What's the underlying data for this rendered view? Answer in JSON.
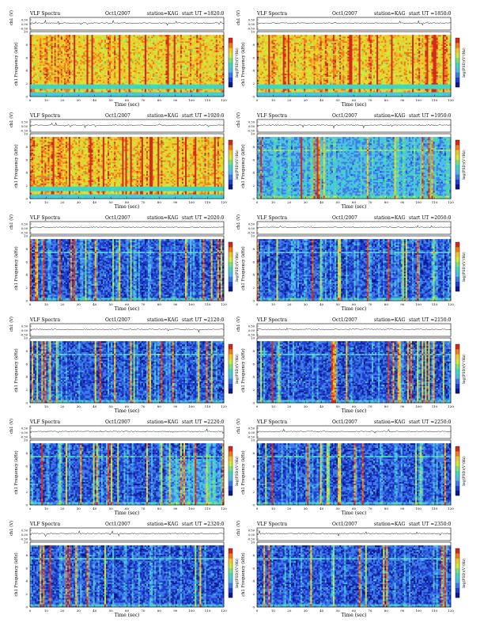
{
  "page": {
    "title": "VLF Spectra station KAG multi-panel spectrograms"
  },
  "colors": {
    "colormap": [
      "#0a1a8c",
      "#1f3fd0",
      "#3d7ce8",
      "#4fbde8",
      "#3fd6c2",
      "#7ee07a",
      "#cfe83a",
      "#f2c52a",
      "#f07c1c",
      "#d42a1a"
    ],
    "trace": "#000000",
    "axis": "#000000"
  },
  "chart_data": [
    {
      "type": "heatmap",
      "header_left": "VLF Spectra",
      "header_date": "Oct1/2007",
      "header_station": "station=KAG",
      "header_start": "start UT =1820:0",
      "ylabel_trace": "ch1 (V)",
      "ylabel_spec": "ch1 Frequency (kHz)",
      "xlabel": "Time (sec)",
      "cbar_label": "log(PSD)(V²/Hz)",
      "trace_ticks": [
        "0.50",
        "0.00",
        "-0.50"
      ],
      "x_ticks": [
        "0",
        "10",
        "20",
        "30",
        "40",
        "50",
        "60",
        "70",
        "80",
        "90",
        "100",
        "110",
        "120"
      ],
      "y_ticks": [
        "0",
        "2",
        "4",
        "6",
        "8",
        "10"
      ],
      "xlim": [
        0,
        120
      ],
      "ylim": [
        0,
        10
      ],
      "intensity": "high",
      "band_top_khz": 9.5
    },
    {
      "type": "heatmap",
      "header_left": "VLF Spectra",
      "header_date": "Oct1/2007",
      "header_station": "station=KAG",
      "header_start": "start UT =1850:0",
      "ylabel_trace": "ch1 (V)",
      "ylabel_spec": "ch1 Frequency (kHz)",
      "xlabel": "Time (sec)",
      "cbar_label": "log(PSD)(V²/Hz)",
      "trace_ticks": [
        "0.50",
        "0.00",
        "-0.50"
      ],
      "x_ticks": [
        "0",
        "10",
        "20",
        "30",
        "40",
        "50",
        "60",
        "70",
        "80",
        "90",
        "100",
        "110",
        "120"
      ],
      "y_ticks": [
        "0",
        "2",
        "4",
        "6",
        "8",
        "10"
      ],
      "xlim": [
        0,
        120
      ],
      "ylim": [
        0,
        10
      ],
      "intensity": "high",
      "band_top_khz": 9.5
    },
    {
      "type": "heatmap",
      "header_left": "VLF Spectra",
      "header_date": "Oct1/2007",
      "header_station": "station=KAG",
      "header_start": "start UT =1920:0",
      "ylabel_trace": "ch1 (V)",
      "ylabel_spec": "ch1 Frequency (kHz)",
      "xlabel": "Time (sec)",
      "cbar_label": "log(PSD)(V²/Hz)",
      "trace_ticks": [
        "0.50",
        "0.00",
        "-0.50"
      ],
      "x_ticks": [
        "0",
        "10",
        "20",
        "30",
        "40",
        "50",
        "60",
        "70",
        "80",
        "90",
        "100",
        "110",
        "120"
      ],
      "y_ticks": [
        "0",
        "2",
        "4",
        "6",
        "8",
        "10"
      ],
      "xlim": [
        0,
        120
      ],
      "ylim": [
        0,
        10
      ],
      "intensity": "high",
      "band_top_khz": 9.5
    },
    {
      "type": "heatmap",
      "header_left": "VLF Spectra",
      "header_date": "Oct1/2007",
      "header_station": "station=KAG",
      "header_start": "start UT =1950:0",
      "ylabel_trace": "ch1 (V)",
      "ylabel_spec": "ch1 Frequency (kHz)",
      "xlabel": "Time (sec)",
      "cbar_label": "log(PSD)(V²/Hz)",
      "trace_ticks": [
        "0.50",
        "0.00",
        "-0.50"
      ],
      "x_ticks": [
        "0",
        "10",
        "20",
        "30",
        "40",
        "50",
        "60",
        "70",
        "80",
        "90",
        "100",
        "110",
        "120"
      ],
      "y_ticks": [
        "0",
        "2",
        "4",
        "6",
        "8",
        "10"
      ],
      "xlim": [
        0,
        120
      ],
      "ylim": [
        0,
        10
      ],
      "intensity": "medium",
      "band_top_khz": 9.5
    },
    {
      "type": "heatmap",
      "header_left": "VLF Spectra",
      "header_date": "Oct1/2007",
      "header_station": "station=KAG",
      "header_start": "start UT =2020:0",
      "ylabel_trace": "ch1 (V)",
      "ylabel_spec": "ch1 Frequency (kHz)",
      "xlabel": "Time (sec)",
      "cbar_label": "log(PSD)(V²/Hz)",
      "trace_ticks": [
        "0.50",
        "0.00",
        "-0.50"
      ],
      "x_ticks": [
        "0",
        "10",
        "20",
        "30",
        "40",
        "50",
        "60",
        "70",
        "80",
        "90",
        "100",
        "110",
        "120"
      ],
      "y_ticks": [
        "0",
        "2",
        "4",
        "6",
        "8",
        "10"
      ],
      "xlim": [
        0,
        120
      ],
      "ylim": [
        0,
        10
      ],
      "intensity": "low",
      "band_top_khz": 9.5
    },
    {
      "type": "heatmap",
      "header_left": "VLF Spectra",
      "header_date": "Oct1/2007",
      "header_station": "station=KAG",
      "header_start": "start UT =2050:0",
      "ylabel_trace": "ch1 (V)",
      "ylabel_spec": "ch1 Frequency (kHz)",
      "xlabel": "Time (sec)",
      "cbar_label": "log(PSD)(V²/Hz)",
      "trace_ticks": [
        "0.50",
        "0.00",
        "-0.50"
      ],
      "x_ticks": [
        "0",
        "10",
        "20",
        "30",
        "40",
        "50",
        "60",
        "70",
        "80",
        "90",
        "100",
        "110",
        "120"
      ],
      "y_ticks": [
        "0",
        "2",
        "4",
        "6",
        "8",
        "10"
      ],
      "xlim": [
        0,
        120
      ],
      "ylim": [
        0,
        10
      ],
      "intensity": "low",
      "band_top_khz": 9.5
    },
    {
      "type": "heatmap",
      "header_left": "VLF Spectra",
      "header_date": "Oct1/2007",
      "header_station": "station=KAG",
      "header_start": "start UT =2120:0",
      "ylabel_trace": "ch1 (V)",
      "ylabel_spec": "ch1 Frequency (kHz)",
      "xlabel": "Time (sec)",
      "cbar_label": "log(PSD)(V²/Hz)",
      "trace_ticks": [
        "0.50",
        "0.00",
        "-0.50"
      ],
      "x_ticks": [
        "0",
        "10",
        "20",
        "30",
        "40",
        "50",
        "60",
        "70",
        "80",
        "90",
        "100",
        "110",
        "120"
      ],
      "y_ticks": [
        "0",
        "2",
        "4",
        "6",
        "8",
        "10"
      ],
      "xlim": [
        0,
        120
      ],
      "ylim": [
        0,
        10
      ],
      "intensity": "low",
      "band_top_khz": 9.5
    },
    {
      "type": "heatmap",
      "header_left": "VLF Spectra",
      "header_date": "Oct1/2007",
      "header_station": "station=KAG",
      "header_start": "start UT =2150:0",
      "ylabel_trace": "ch1 (V)",
      "ylabel_spec": "ch1 Frequency (kHz)",
      "xlabel": "Time (sec)",
      "cbar_label": "log(PSD)(V²/Hz)",
      "trace_ticks": [
        "0.50",
        "0.00",
        "-0.50"
      ],
      "x_ticks": [
        "0",
        "10",
        "20",
        "30",
        "40",
        "50",
        "60",
        "70",
        "80",
        "90",
        "100",
        "110",
        "120"
      ],
      "y_ticks": [
        "0",
        "2",
        "4",
        "6",
        "8",
        "10"
      ],
      "xlim": [
        0,
        120
      ],
      "ylim": [
        0,
        10
      ],
      "intensity": "low",
      "band_top_khz": 9.5
    },
    {
      "type": "heatmap",
      "header_left": "VLF Spectra",
      "header_date": "Oct1/2007",
      "header_station": "station=KAG",
      "header_start": "start UT =2220:0",
      "ylabel_trace": "ch1 (V)",
      "ylabel_spec": "ch1 Frequency (kHz)",
      "xlabel": "Time (sec)",
      "cbar_label": "log(PSD)(V²/Hz)",
      "trace_ticks": [
        "0.50",
        "0.00",
        "-0.50"
      ],
      "x_ticks": [
        "0",
        "10",
        "20",
        "30",
        "40",
        "50",
        "60",
        "70",
        "80",
        "90",
        "100",
        "110",
        "120"
      ],
      "y_ticks": [
        "0",
        "2",
        "4",
        "6",
        "8",
        "10"
      ],
      "xlim": [
        0,
        120
      ],
      "ylim": [
        0,
        10
      ],
      "intensity": "low",
      "band_top_khz": 9.5
    },
    {
      "type": "heatmap",
      "header_left": "VLF Spectra",
      "header_date": "Oct1/2007",
      "header_station": "station=KAG",
      "header_start": "start UT =2250:0",
      "ylabel_trace": "ch1 (V)",
      "ylabel_spec": "ch1 Frequency (kHz)",
      "xlabel": "Time (sec)",
      "cbar_label": "log(PSD)(V²/Hz)",
      "trace_ticks": [
        "0.50",
        "0.00",
        "-0.50"
      ],
      "x_ticks": [
        "0",
        "10",
        "20",
        "30",
        "40",
        "50",
        "60",
        "70",
        "80",
        "90",
        "100",
        "110",
        "120"
      ],
      "y_ticks": [
        "0",
        "2",
        "4",
        "6",
        "8",
        "10"
      ],
      "xlim": [
        0,
        120
      ],
      "ylim": [
        0,
        10
      ],
      "intensity": "low",
      "band_top_khz": 9.5
    },
    {
      "type": "heatmap",
      "header_left": "VLF Spectra",
      "header_date": "Oct1/2007",
      "header_station": "station=KAG",
      "header_start": "start UT =2320:0",
      "ylabel_trace": "ch1 (V)",
      "ylabel_spec": "ch1 Frequency (kHz)",
      "xlabel": "Time (sec)",
      "cbar_label": "log(PSD)(V²/Hz)",
      "trace_ticks": [
        "0.50",
        "0.00",
        "-0.50"
      ],
      "x_ticks": [
        "0",
        "10",
        "20",
        "30",
        "40",
        "50",
        "60",
        "70",
        "80",
        "90",
        "100",
        "110",
        "120"
      ],
      "y_ticks": [
        "0",
        "2",
        "4",
        "6",
        "8",
        "10"
      ],
      "xlim": [
        0,
        120
      ],
      "ylim": [
        0,
        10
      ],
      "intensity": "low",
      "band_top_khz": 9.5
    },
    {
      "type": "heatmap",
      "header_left": "VLF Spectra",
      "header_date": "Oct1/2007",
      "header_station": "station=KAG",
      "header_start": "start UT =2350:0",
      "ylabel_trace": "ch1 (V)",
      "ylabel_spec": "ch1 Frequency (kHz)",
      "xlabel": "Time (sec)",
      "cbar_label": "log(PSD)(V²/Hz)",
      "trace_ticks": [
        "0.50",
        "0.00",
        "-0.50"
      ],
      "x_ticks": [
        "0",
        "10",
        "20",
        "30",
        "40",
        "50",
        "60",
        "70",
        "80",
        "90",
        "100",
        "110",
        "120"
      ],
      "y_ticks": [
        "0",
        "2",
        "4",
        "6",
        "8",
        "10"
      ],
      "xlim": [
        0,
        120
      ],
      "ylim": [
        0,
        10
      ],
      "intensity": "low",
      "band_top_khz": 9.5
    }
  ]
}
